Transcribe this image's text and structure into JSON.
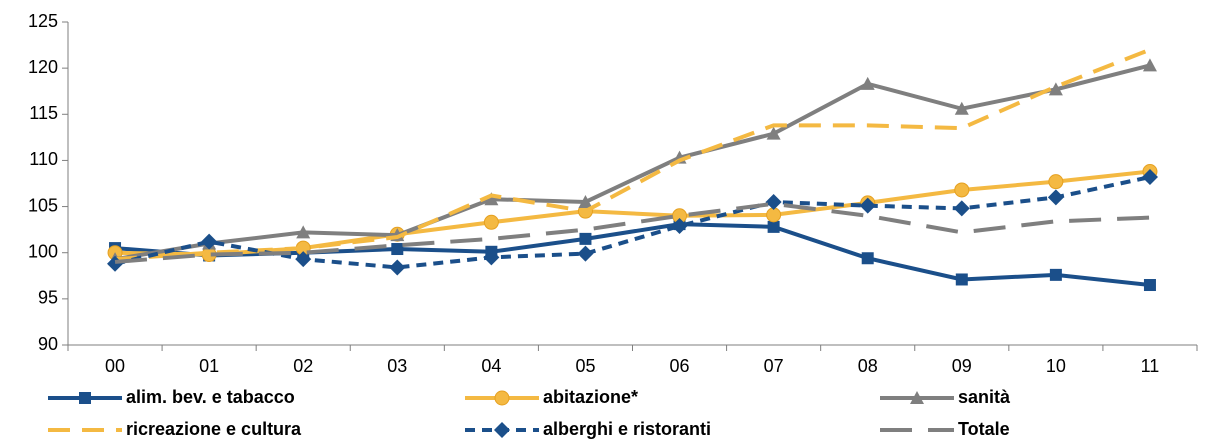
{
  "chart_data": {
    "type": "line",
    "categories": [
      "00",
      "01",
      "02",
      "03",
      "04",
      "05",
      "06",
      "07",
      "08",
      "09",
      "10",
      "11"
    ],
    "series": [
      {
        "name": "alim. bev. e tabacco",
        "color": "#1b4f8a",
        "marker": "square",
        "dash": "solid",
        "values": [
          100.5,
          99.7,
          100.0,
          100.4,
          100.1,
          101.5,
          103.1,
          102.8,
          99.4,
          97.1,
          97.6,
          96.5
        ]
      },
      {
        "name": "abitazione*",
        "color": "#f4b942",
        "marker": "circle",
        "dash": "solid",
        "values": [
          100.0,
          99.8,
          100.5,
          102.0,
          103.3,
          104.5,
          104.0,
          104.1,
          105.4,
          106.8,
          107.7,
          108.8
        ]
      },
      {
        "name": "sanità",
        "color": "#7f7f7f",
        "marker": "triangle",
        "dash": "solid",
        "values": [
          99.3,
          101.0,
          102.2,
          101.9,
          105.8,
          105.5,
          110.3,
          112.9,
          118.3,
          115.6,
          117.7,
          120.3
        ]
      },
      {
        "name": "ricreazione e cultura",
        "color": "#f4b942",
        "marker": "none",
        "dash": "dash",
        "values": [
          99.3,
          100.0,
          100.5,
          101.7,
          106.2,
          104.5,
          110.0,
          113.8,
          113.8,
          113.5,
          118.0,
          122.0
        ]
      },
      {
        "name": "alberghi e ristoranti",
        "color": "#1b4f8a",
        "marker": "diamond",
        "dash": "dot",
        "values": [
          98.8,
          101.2,
          99.3,
          98.4,
          99.5,
          99.9,
          102.9,
          105.5,
          105.1,
          104.8,
          106.0,
          108.2
        ]
      },
      {
        "name": "Totale",
        "color": "#7f7f7f",
        "marker": "none",
        "dash": "longdash",
        "values": [
          99.0,
          99.8,
          100.0,
          100.8,
          101.5,
          102.5,
          104.0,
          105.3,
          104.0,
          102.2,
          103.4,
          103.8
        ]
      }
    ],
    "ylim": [
      90,
      125
    ],
    "yticks": [
      90,
      95,
      100,
      105,
      110,
      115,
      120,
      125
    ],
    "grid": false,
    "legend": "bottom"
  }
}
